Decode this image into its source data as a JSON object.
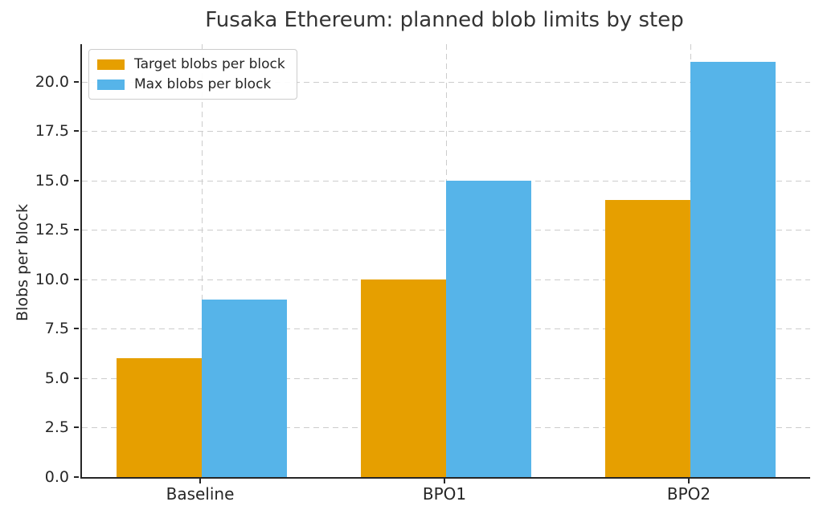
{
  "chart_data": {
    "type": "bar",
    "title": "Fusaka Ethereum: planned blob limits by step",
    "xlabel": "",
    "ylabel": "Blobs per block",
    "categories": [
      "Baseline",
      "BPO1",
      "BPO2"
    ],
    "series": [
      {
        "name": "Target blobs per block",
        "color": "#E69F00",
        "values": [
          6,
          10,
          14
        ]
      },
      {
        "name": "Max blobs per block",
        "color": "#56B4E9",
        "values": [
          9,
          15,
          21
        ]
      }
    ],
    "ylim": [
      0,
      21.9
    ],
    "yticks": [
      0,
      2.5,
      5,
      7.5,
      10,
      12.5,
      15,
      17.5,
      20
    ],
    "ytick_labels": [
      "0.0",
      "2.5",
      "5.0",
      "7.5",
      "10.0",
      "12.5",
      "15.0",
      "17.5",
      "20.0"
    ],
    "grid": true,
    "grid_style": "dashed",
    "legend_position": "upper left",
    "colors": {
      "grid": "#cccccc",
      "spine": "#262626",
      "tick_text": "#262626",
      "title_text": "#343434",
      "background": "#ffffff"
    }
  }
}
